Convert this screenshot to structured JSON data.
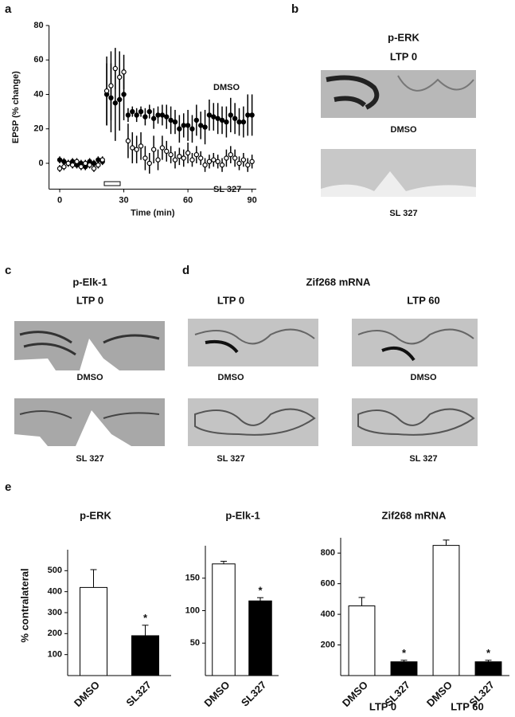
{
  "panel_letters": [
    "a",
    "b",
    "c",
    "d",
    "e"
  ],
  "images": {
    "b": {
      "title": "p-ERK",
      "condition": "LTP 0",
      "captions": [
        "DMSO",
        "SL 327"
      ]
    },
    "c": {
      "title": "p-Elk-1",
      "condition": "LTP 0",
      "captions": [
        "DMSO",
        "SL 327"
      ]
    },
    "d": {
      "title": "Zif268 mRNA",
      "conditions": [
        "LTP 0",
        "LTP 60"
      ],
      "captions": [
        "DMSO",
        "SL 327"
      ]
    }
  },
  "chart_data": [
    {
      "type": "scatter",
      "xlabel": "Time (min)",
      "ylabel": "EPSP (% change)",
      "xlim": [
        -5,
        92
      ],
      "xticks": [
        0,
        30,
        60,
        90
      ],
      "ylim": [
        -15,
        80
      ],
      "yticks": [
        0,
        20,
        40,
        60,
        80
      ],
      "series": [
        {
          "name": "DMSO",
          "color": "#000000",
          "filled": true,
          "x": [
            0,
            2,
            4,
            6,
            8,
            10,
            12,
            14,
            16,
            18,
            20,
            22,
            24,
            26,
            28,
            30,
            32,
            34,
            36,
            38,
            40,
            42,
            44,
            46,
            48,
            50,
            52,
            54,
            56,
            58,
            60,
            62,
            64,
            66,
            68,
            70,
            72,
            74,
            76,
            78,
            80,
            82,
            84,
            86,
            88,
            90
          ],
          "values": [
            2,
            1,
            0,
            1,
            -1,
            0,
            -2,
            1,
            0,
            2,
            1,
            40,
            38,
            35,
            37,
            40,
            28,
            30,
            28,
            30,
            27,
            30,
            26,
            28,
            28,
            27,
            25,
            24,
            20,
            22,
            22,
            20,
            25,
            22,
            21,
            28,
            27,
            26,
            25,
            24,
            28,
            26,
            24,
            24,
            28,
            28
          ],
          "errors": [
            2,
            2,
            2,
            2,
            2,
            2,
            2,
            2,
            2,
            2,
            2,
            18,
            20,
            22,
            18,
            15,
            4,
            3,
            4,
            3,
            5,
            4,
            6,
            5,
            6,
            7,
            8,
            7,
            8,
            7,
            9,
            8,
            9,
            8,
            10,
            9,
            8,
            9,
            8,
            9,
            10,
            9,
            8,
            9,
            12,
            12
          ]
        },
        {
          "name": "SL 327",
          "color": "#000000",
          "filled": false,
          "x": [
            0,
            2,
            4,
            6,
            8,
            10,
            12,
            14,
            16,
            18,
            20,
            22,
            24,
            26,
            28,
            30,
            32,
            34,
            36,
            38,
            40,
            42,
            44,
            46,
            48,
            50,
            52,
            54,
            56,
            58,
            60,
            62,
            64,
            66,
            68,
            70,
            72,
            74,
            76,
            78,
            80,
            82,
            84,
            86,
            88,
            90
          ],
          "values": [
            -3,
            -2,
            0,
            -1,
            1,
            -2,
            0,
            -1,
            -3,
            -1,
            2,
            42,
            45,
            55,
            50,
            53,
            13,
            9,
            8,
            10,
            3,
            0,
            8,
            2,
            9,
            7,
            5,
            2,
            4,
            3,
            6,
            2,
            5,
            3,
            -1,
            1,
            2,
            1,
            -1,
            3,
            5,
            3,
            0,
            2,
            -1,
            1
          ],
          "errors": [
            2,
            2,
            2,
            2,
            2,
            2,
            2,
            2,
            2,
            2,
            2,
            20,
            20,
            12,
            15,
            10,
            10,
            9,
            8,
            8,
            7,
            6,
            8,
            6,
            7,
            6,
            5,
            5,
            5,
            5,
            6,
            4,
            5,
            4,
            4,
            4,
            4,
            4,
            4,
            5,
            5,
            5,
            4,
            4,
            4,
            4
          ]
        }
      ]
    },
    {
      "type": "bar",
      "title": "p-ERK",
      "ylabel": "% contralateral",
      "categories": [
        "DMSO",
        "SL327"
      ],
      "values": [
        420,
        190
      ],
      "errors": [
        85,
        50
      ],
      "colors": [
        "#ffffff",
        "#000000"
      ],
      "ylim": [
        0,
        600
      ],
      "yticks": [
        100,
        200,
        300,
        400,
        500
      ],
      "significant": [
        false,
        true
      ],
      "significance_marker": "*"
    },
    {
      "type": "bar",
      "title": "p-Elk-1",
      "categories": [
        "DMSO",
        "SL327"
      ],
      "values": [
        172,
        115
      ],
      "errors": [
        4,
        5
      ],
      "colors": [
        "#ffffff",
        "#000000"
      ],
      "ylim": [
        0,
        200
      ],
      "yticks": [
        50,
        100,
        150
      ],
      "significant": [
        false,
        true
      ],
      "significance_marker": "*"
    },
    {
      "type": "bar",
      "title": "Zif268 mRNA",
      "categories": [
        "DMSO",
        "SL327",
        "DMSO",
        "SL327"
      ],
      "values": [
        455,
        90,
        850,
        90
      ],
      "errors": [
        55,
        10,
        35,
        10
      ],
      "colors": [
        "#ffffff",
        "#000000",
        "#ffffff",
        "#000000"
      ],
      "ylim": [
        0,
        900
      ],
      "yticks": [
        200,
        400,
        600,
        800
      ],
      "groups": [
        "LTP 0",
        "LTP 60"
      ],
      "significant": [
        false,
        true,
        false,
        true
      ],
      "significance_marker": "*"
    }
  ]
}
